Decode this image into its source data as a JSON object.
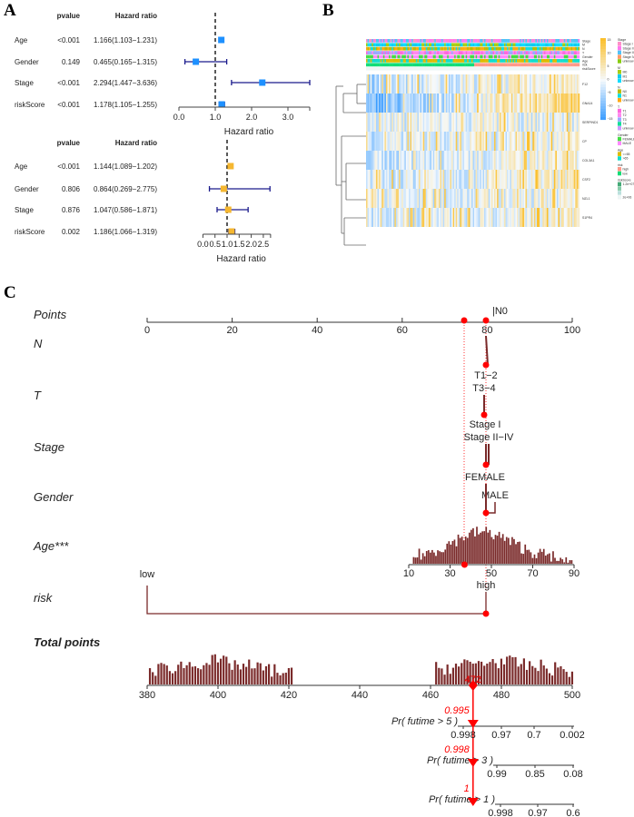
{
  "panels": {
    "a": "A",
    "b": "B",
    "c": "C"
  },
  "chart_data": [
    {
      "type": "forest",
      "id": "univariate",
      "headers": {
        "p": "pvalue",
        "hr": "Hazard ratio"
      },
      "xlabel": "Hazard ratio",
      "xlim": [
        0,
        3.6
      ],
      "ticks": [
        "0.0",
        "1.0",
        "2.0",
        "3.0"
      ],
      "tick_values": [
        0,
        1,
        2,
        3
      ],
      "ref": 1,
      "color": "#1e90ff",
      "rows": [
        {
          "name": "Age",
          "p": "<0.001",
          "text": "1.166(1.103−1.231)",
          "hr": 1.166,
          "lo": 1.103,
          "hi": 1.231
        },
        {
          "name": "Gender",
          "p": "0.149",
          "text": "0.465(0.165−1.315)",
          "hr": 0.465,
          "lo": 0.165,
          "hi": 1.315
        },
        {
          "name": "Stage",
          "p": "<0.001",
          "text": "2.294(1.447−3.636)",
          "hr": 2.294,
          "lo": 1.447,
          "hi": 3.636
        },
        {
          "name": "riskScore",
          "p": "<0.001",
          "text": "1.178(1.105−1.255)",
          "hr": 1.178,
          "lo": 1.105,
          "hi": 1.255
        }
      ]
    },
    {
      "type": "forest",
      "id": "multivariate",
      "headers": {
        "p": "pvalue",
        "hr": "Hazard ratio"
      },
      "xlabel": "Hazard ratio",
      "xlim": [
        0,
        2.8
      ],
      "ticks": [
        "0.0",
        "0.5",
        "1.0",
        "1.5",
        "2.0",
        "2.5"
      ],
      "tick_values": [
        0,
        0.5,
        1,
        1.5,
        2,
        2.5
      ],
      "ref": 1,
      "color": "#f5b731",
      "rows": [
        {
          "name": "Age",
          "p": "<0.001",
          "text": "1.144(1.089−1.202)",
          "hr": 1.144,
          "lo": 1.089,
          "hi": 1.202
        },
        {
          "name": "Gender",
          "p": "0.806",
          "text": "0.864(0.269−2.775)",
          "hr": 0.864,
          "lo": 0.269,
          "hi": 2.775
        },
        {
          "name": "Stage",
          "p": "0.876",
          "text": "1.047(0.586−1.871)",
          "hr": 1.047,
          "lo": 0.586,
          "hi": 1.871
        },
        {
          "name": "riskScore",
          "p": "0.002",
          "text": "1.186(1.066−1.319)",
          "hr": 1.186,
          "lo": 1.066,
          "hi": 1.319
        }
      ]
    },
    {
      "type": "heatmap",
      "id": "expression",
      "annotations": [
        "Stage",
        "M",
        "N",
        "T",
        "Gender",
        "Age",
        "risk",
        "riskScore"
      ],
      "genes": [
        "F12",
        "GNA14",
        "SERPIND1",
        "CP",
        "COL3A1",
        "CSF2",
        "NZL1",
        "S1PR4"
      ],
      "colorbar": {
        "ticks": [
          "15",
          "10",
          "5",
          "0",
          "−5",
          "−10",
          "−15"
        ],
        "low": "#3399ff",
        "mid": "#f5f9fc",
        "high": "#fbc02d"
      },
      "legend": [
        {
          "title": "Stage",
          "items": [
            [
              "Stage I",
              "#ff8fc8"
            ],
            [
              "Stage II",
              "#ff77ee"
            ],
            [
              "Stage III",
              "#4fc3f7"
            ],
            [
              "Stage IV",
              "#ff9966"
            ],
            [
              "unknow",
              "#88cc11"
            ]
          ]
        },
        {
          "title": "M",
          "items": [
            [
              "M0",
              "#aacc11"
            ],
            [
              "M1",
              "#11ccee"
            ],
            [
              "unknow",
              "#11ddff"
            ]
          ]
        },
        {
          "title": "N",
          "items": [
            [
              "N0",
              "#bbbb00"
            ],
            [
              "N1",
              "#11dddd"
            ],
            [
              "unknow",
              "#ffaa11"
            ]
          ]
        },
        {
          "title": "T",
          "items": [
            [
              "T1",
              "#ff66dd"
            ],
            [
              "T2",
              "#ff88ee"
            ],
            [
              "T3",
              "#99aaff"
            ],
            [
              "T4",
              "#11dd99"
            ],
            [
              "unknow",
              "#cc99ff"
            ]
          ]
        },
        {
          "title": "Gender",
          "items": [
            [
              "FEMALE",
              "#44dd44"
            ],
            [
              "MALE",
              "#ff88ff"
            ]
          ]
        },
        {
          "title": "Age",
          "items": [
            [
              "<=65",
              "#ddbb00"
            ],
            [
              ">65",
              "#11ddcc"
            ]
          ]
        },
        {
          "title": "risk",
          "items": [
            [
              "high",
              "#ff9988"
            ],
            [
              "low",
              "#11dd77"
            ]
          ]
        },
        {
          "title": "riskScore",
          "items": [
            [
              "1.2e+07",
              "#44aa77"
            ],
            [
              "",
              "#88ccaa"
            ],
            [
              "",
              "#bbe0dd"
            ],
            [
              "2e+06",
              "#eef6f6"
            ]
          ]
        }
      ]
    },
    {
      "type": "nomogram",
      "id": "nomogram",
      "points": {
        "label": "Points",
        "ticks": [
          0,
          20,
          40,
          60,
          80,
          100
        ],
        "overlap_labels": "|N0"
      },
      "variables": [
        {
          "name": "N"
        },
        {
          "name": "T",
          "levels": [
            "T1−2",
            "T3−4"
          ]
        },
        {
          "name": "Stage",
          "levels": [
            "Stage I",
            "Stage II−IV"
          ]
        },
        {
          "name": "Gender",
          "levels": [
            "FEMALE",
            "MALE"
          ]
        },
        {
          "name": "Age***",
          "ticks": [
            10,
            30,
            50,
            70,
            90
          ],
          "selected": 37
        },
        {
          "name": "risk",
          "levels": [
            "low",
            "high"
          ],
          "selected": "high"
        }
      ],
      "total_points": {
        "label": "Total points",
        "ticks": [
          380,
          400,
          420,
          440,
          460,
          480,
          500
        ],
        "value": 472,
        "value_label": "472"
      },
      "survival": [
        {
          "label": "Pr( futime > 5 )",
          "ticks": [
            "0.998",
            "0.97",
            "0.7",
            "0.002"
          ],
          "value": "0.995"
        },
        {
          "label": "Pr( futime > 3 )",
          "ticks": [
            "0.99",
            "0.85",
            "0.08"
          ],
          "value": "0.998"
        },
        {
          "label": "Pr( futime > 1 )",
          "ticks": [
            "0.998",
            "0.97",
            "0.6"
          ],
          "value": "1"
        }
      ],
      "colors": {
        "hist": "#7a2a2a",
        "marker": "#ff0000"
      }
    }
  ]
}
